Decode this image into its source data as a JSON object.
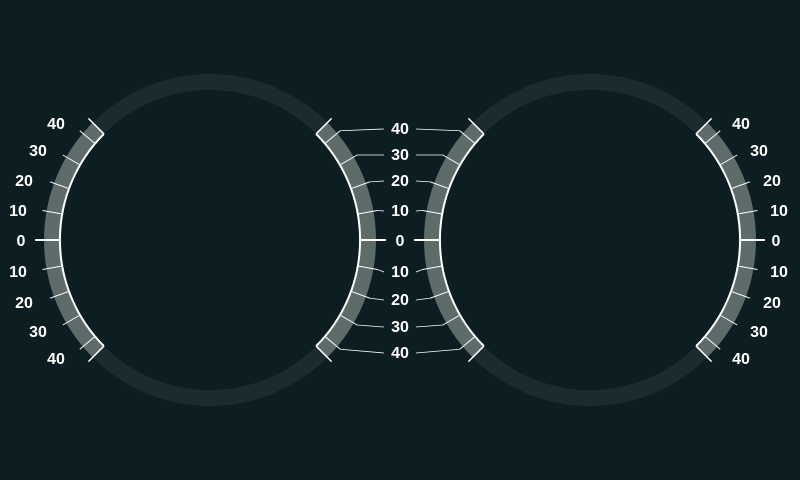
{
  "gauges": {
    "colors": {
      "background": "#0c1e22",
      "ring": "#1b2b2f",
      "band": "#5e6b6b",
      "tick": "#ffffff",
      "label": "#ffffff"
    },
    "left_gauge": {
      "side_labels": [
        "40",
        "30",
        "20",
        "10",
        "0",
        "10",
        "20",
        "30",
        "40"
      ]
    },
    "right_gauge": {
      "side_labels": [
        "40",
        "30",
        "20",
        "10",
        "0",
        "10",
        "20",
        "30",
        "40"
      ]
    },
    "center_scale": {
      "labels": [
        "40",
        "30",
        "20",
        "10",
        "0",
        "10",
        "20",
        "30",
        "40"
      ]
    }
  }
}
